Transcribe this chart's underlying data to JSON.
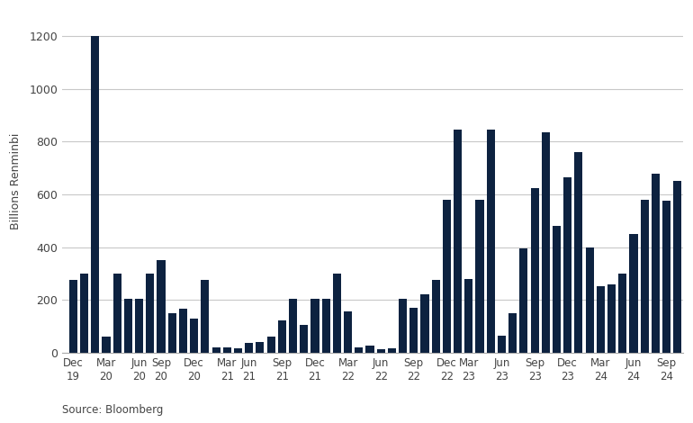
{
  "ylabel": "Billions Renminbi",
  "source": "Source: Bloomberg",
  "bar_color": "#0d2240",
  "background_color": "#ffffff",
  "grid_color": "#c8c8c8",
  "ylim": [
    0,
    1300
  ],
  "yticks": [
    0,
    200,
    400,
    600,
    800,
    1000,
    1200
  ],
  "tick_labels": [
    "Dec\n19",
    "Mar\n20",
    "Jun\n20",
    "Sep\n20",
    "Dec\n20",
    "Mar\n21",
    "Jun\n21",
    "Sep\n21",
    "Dec\n21",
    "Mar\n22",
    "Jun\n22",
    "Sep\n22",
    "Dec\n22",
    "Mar\n23",
    "Jun\n23",
    "Sep\n23",
    "Dec\n23",
    "Mar\n24",
    "Jun\n24",
    "Sep\n24"
  ],
  "tick_bar_indices": [
    1,
    4,
    7,
    9,
    12,
    15,
    17,
    20,
    23,
    26,
    29,
    32,
    35,
    37,
    40,
    43,
    46,
    49,
    52,
    55
  ],
  "values": [
    275,
    300,
    1200,
    60,
    300,
    205,
    205,
    300,
    350,
    150,
    165,
    130,
    275,
    20,
    20,
    15,
    35,
    40,
    60,
    120,
    205,
    105,
    205,
    205,
    300,
    155,
    20,
    25,
    12,
    15,
    205,
    170,
    220,
    275,
    580,
    845,
    280,
    580,
    845,
    65,
    150,
    395,
    625,
    835,
    480,
    665,
    760,
    400,
    250,
    260,
    300,
    450,
    580,
    680,
    575,
    650
  ]
}
